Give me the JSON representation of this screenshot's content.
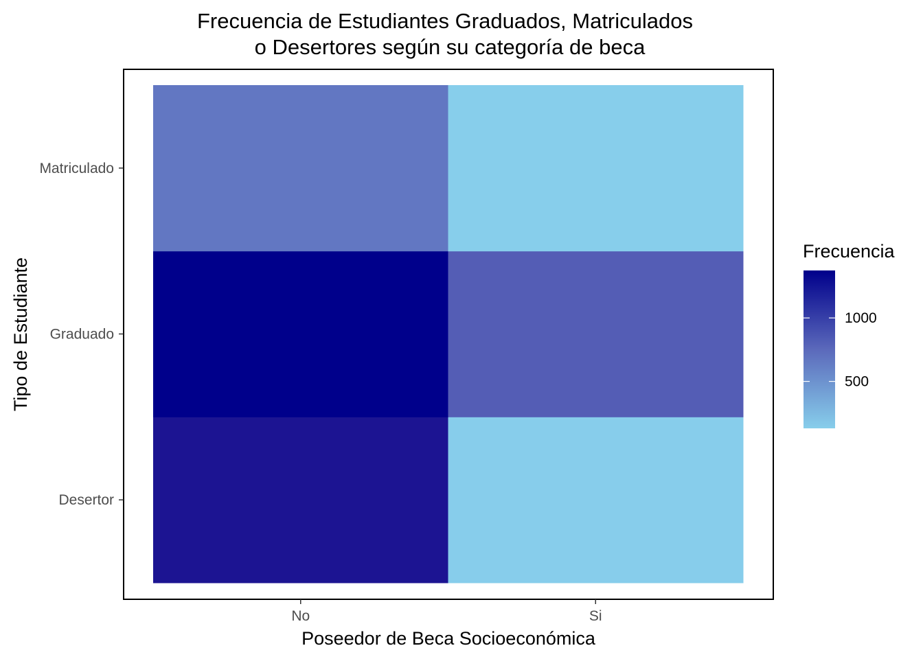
{
  "chart_data": {
    "type": "heatmap",
    "title_lines": [
      "Frecuencia de Estudiantes Graduados, Matriculados",
      "o Desertores según su categoría de beca"
    ],
    "xlabel": "Poseedor de Beca Socioeconómica",
    "ylabel": "Tipo de Estudiante",
    "x_categories": [
      "No",
      "Si"
    ],
    "y_categories": [
      "Desertor",
      "Graduado",
      "Matriculado"
    ],
    "cells": [
      {
        "x": "No",
        "y": "Desertor",
        "value": 1287
      },
      {
        "x": "Si",
        "y": "Desertor",
        "value": 134
      },
      {
        "x": "No",
        "y": "Graduado",
        "value": 1374
      },
      {
        "x": "Si",
        "y": "Graduado",
        "value": 835
      },
      {
        "x": "No",
        "y": "Matriculado",
        "value": 664
      },
      {
        "x": "Si",
        "y": "Matriculado",
        "value": 130
      }
    ],
    "legend": {
      "title": "Frecuencia",
      "min": 130,
      "max": 1374,
      "breaks": [
        500,
        1000
      ],
      "break_labels": [
        "500",
        "1000"
      ],
      "low_color": "#87CEEB",
      "high_color": "#00008B",
      "placement": "right"
    },
    "grid": false
  }
}
